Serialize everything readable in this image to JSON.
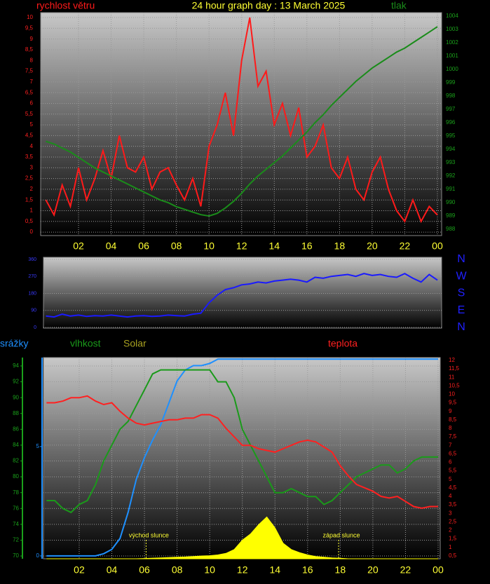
{
  "chart_data": [
    {
      "type": "line",
      "title": "24 hour graph day : 13 March 2025",
      "x": [
        0,
        0.5,
        1,
        1.5,
        2,
        2.5,
        3,
        3.5,
        4,
        4.5,
        5,
        5.5,
        6,
        6.5,
        7,
        7.5,
        8,
        8.5,
        9,
        9.5,
        10,
        10.5,
        11,
        11.5,
        12,
        12.5,
        13,
        13.5,
        14,
        14.5,
        15,
        15.5,
        16,
        16.5,
        17,
        17.5,
        18,
        18.5,
        19,
        19.5,
        20,
        20.5,
        21,
        21.5,
        22,
        22.5,
        23,
        23.5,
        24
      ],
      "xlim": [
        -0.32,
        24.26
      ],
      "xticks": [
        {
          "value": 2,
          "label": "02"
        },
        {
          "value": 4,
          "label": "04"
        },
        {
          "value": 6,
          "label": "06"
        },
        {
          "value": 8,
          "label": "08"
        },
        10,
        12,
        14,
        16,
        18,
        20,
        22,
        {
          "value": 24,
          "label": "00"
        }
      ],
      "ylim": [
        -0.16,
        10.23
      ],
      "yticks": [
        0,
        {
          "value": 0.5,
          "label": "0,5"
        },
        1,
        {
          "value": 1.5,
          "label": "1,5"
        },
        2,
        {
          "value": 2.5,
          "label": "2,5"
        },
        3,
        {
          "value": 3.5,
          "label": "3,5"
        },
        4,
        {
          "value": 4.5,
          "label": "4,5"
        },
        5,
        {
          "value": 5.5,
          "label": "5,5"
        },
        6,
        {
          "value": 6.5,
          "label": "6,5"
        },
        7,
        {
          "value": 7.5,
          "label": "7,5"
        },
        8,
        {
          "value": 8.5,
          "label": "8,5"
        },
        9,
        {
          "value": 9.5,
          "label": "9,5"
        },
        10
      ],
      "y2lim": [
        987.53,
        1004.26
      ],
      "y2ticks": [
        988,
        989,
        990,
        991,
        992,
        993,
        994,
        995,
        996,
        997,
        998,
        999,
        1000,
        1001,
        1002,
        1003,
        1004
      ],
      "grid": true,
      "series": [
        {
          "name": "rychlost větru",
          "color": "#ff1a1a",
          "values": [
            1.5,
            0.8,
            2.2,
            1.2,
            3,
            1.5,
            2.5,
            3.8,
            2.5,
            4.5,
            3,
            2.8,
            3.5,
            2,
            2.8,
            3,
            2.2,
            1.5,
            2.5,
            1.2,
            4,
            5,
            6.5,
            4.5,
            8,
            10,
            6.8,
            7.5,
            5,
            6,
            4.5,
            5.8,
            3.5,
            4,
            5,
            3,
            2.5,
            3.5,
            2,
            1.5,
            2.8,
            3.5,
            2,
            1,
            0.5,
            1.5,
            0.5,
            1.2,
            0.8
          ]
        },
        {
          "name": "tlak",
          "color": "#1a8c1a",
          "axis": "y2",
          "values": [
            994.6,
            994.4,
            994.1,
            993.8,
            993.4,
            993.0,
            992.6,
            992.3,
            992.0,
            991.7,
            991.4,
            991.1,
            990.8,
            990.5,
            990.2,
            990.0,
            989.7,
            989.5,
            989.3,
            989.1,
            989.0,
            989.2,
            989.6,
            990.1,
            990.7,
            991.4,
            992.0,
            992.5,
            993.0,
            993.5,
            994.1,
            994.7,
            995.3,
            996.0,
            996.6,
            997.3,
            997.9,
            998.5,
            999.1,
            999.6,
            1000.1,
            1000.5,
            1000.9,
            1001.3,
            1001.6,
            1002.0,
            1002.4,
            1002.8,
            1003.2
          ]
        }
      ]
    },
    {
      "type": "line",
      "x": [
        0,
        0.5,
        1,
        1.5,
        2,
        2.5,
        3,
        3.5,
        4,
        4.5,
        5,
        5.5,
        6,
        6.5,
        7,
        7.5,
        8,
        8.5,
        9,
        9.5,
        10,
        10.5,
        11,
        11.5,
        12,
        12.5,
        13,
        13.5,
        14,
        14.5,
        15,
        15.5,
        16,
        16.5,
        17,
        17.5,
        18,
        18.5,
        19,
        19.5,
        20,
        20.5,
        21,
        21.5,
        22,
        22.5,
        23,
        23.5,
        24
      ],
      "xlim": [
        -0.15,
        24.26
      ],
      "ylim": [
        -4,
        371
      ],
      "yticks": [
        0,
        90,
        180,
        270,
        360
      ],
      "y2lim": [
        -4,
        371
      ],
      "y2ticks": [
        {
          "value": 360,
          "label": "N"
        },
        {
          "value": 270,
          "label": "W"
        },
        {
          "value": 180,
          "label": "S"
        },
        {
          "value": 90,
          "label": "E"
        },
        {
          "value": 0,
          "label": "N"
        }
      ],
      "grid": true,
      "series": [
        {
          "color": "#1a1aff",
          "values": [
            60,
            55,
            70,
            60,
            65,
            58,
            62,
            60,
            65,
            60,
            55,
            60,
            62,
            58,
            60,
            65,
            62,
            60,
            70,
            75,
            130,
            170,
            200,
            210,
            225,
            230,
            240,
            235,
            245,
            250,
            255,
            250,
            240,
            265,
            260,
            270,
            275,
            280,
            270,
            285,
            275,
            280,
            270,
            265,
            285,
            260,
            240,
            280,
            250
          ]
        }
      ]
    },
    {
      "type": "line",
      "x": [
        0,
        0.5,
        1,
        1.5,
        2,
        2.5,
        3,
        3.5,
        4,
        4.5,
        5,
        5.5,
        6,
        6.5,
        7,
        7.5,
        8,
        8.5,
        9,
        9.5,
        10,
        10.5,
        11,
        11.5,
        12,
        12.5,
        13,
        13.5,
        14,
        14.5,
        15,
        15.5,
        16,
        16.5,
        17,
        17.5,
        18,
        18.5,
        19,
        19.5,
        20,
        20.5,
        21,
        21.5,
        22,
        22.5,
        23,
        23.5,
        24
      ],
      "xlim": [
        -0.19,
        24.13
      ],
      "xticks": [
        {
          "value": 2,
          "label": "02"
        },
        {
          "value": 4,
          "label": "04"
        },
        {
          "value": 6,
          "label": "06"
        },
        {
          "value": 8,
          "label": "08"
        },
        10,
        12,
        14,
        16,
        18,
        20,
        22,
        {
          "value": 24,
          "label": "00"
        }
      ],
      "ylim": [
        69.65,
        95.06
      ],
      "yticks": [
        70,
        72,
        74,
        76,
        78,
        80,
        82,
        84,
        86,
        88,
        90,
        92,
        94
      ],
      "y2lim": [
        0.33,
        12.16
      ],
      "y2ticks": [
        {
          "value": 0.5,
          "label": "0,5"
        },
        1,
        {
          "value": 1.5,
          "label": "1,5"
        },
        2,
        {
          "value": 2.5,
          "label": "2,5"
        },
        3,
        {
          "value": 3.5,
          "label": "3,5"
        },
        4,
        {
          "value": 4.5,
          "label": "4,5"
        },
        5,
        {
          "value": 5.5,
          "label": "5,5"
        },
        6,
        {
          "value": 6.5,
          "label": "6,5"
        },
        7,
        {
          "value": 7.5,
          "label": "7,5"
        },
        8,
        {
          "value": 8.5,
          "label": "8,5"
        },
        9,
        {
          "value": 9.5,
          "label": "9,5"
        },
        10,
        {
          "value": 10.5,
          "label": "10,5"
        },
        11,
        {
          "value": 11.5,
          "label": "11,5"
        },
        12
      ],
      "y3lim": [
        -0.13,
        9.07
      ],
      "y3ticks": [
        0,
        5
      ],
      "y4lim": [
        0,
        1300
      ],
      "grid": true,
      "annotations": [
        {
          "text": "východ slunce",
          "x": 6.1
        },
        {
          "text": "západ slunce",
          "x": 17.9
        }
      ],
      "series": [
        {
          "name": "srážky",
          "color": "#1e90ff",
          "axis": "y3",
          "values": [
            0,
            0,
            0,
            0,
            0,
            0,
            0,
            0.1,
            0.3,
            0.8,
            2.0,
            3.5,
            4.5,
            5.3,
            6.0,
            7.0,
            8.0,
            8.5,
            8.7,
            8.7,
            8.8,
            9.0,
            9.0,
            9.0,
            9.0,
            9.0,
            9.0,
            9.0,
            9.0,
            9.0,
            9.0,
            9.0,
            9.0,
            9.0,
            9.0,
            9.0,
            9.0,
            9.0,
            9.0,
            9.0,
            9.0,
            9.0,
            9.0,
            9.0,
            9.0,
            9.0,
            9.0,
            9.0,
            9.0
          ]
        },
        {
          "name": "vlhkost",
          "color": "#1a9a1a",
          "values": [
            77,
            77,
            76,
            75.5,
            76.5,
            77,
            79,
            82,
            84,
            86,
            87,
            89,
            91,
            93,
            93.5,
            93.5,
            93.5,
            93.5,
            93.5,
            93.5,
            93.5,
            92,
            92,
            90,
            86,
            84,
            82,
            80,
            78,
            78,
            78.5,
            78,
            77.5,
            77.5,
            76.5,
            77,
            78,
            79,
            80,
            80.5,
            81,
            81.5,
            81.5,
            80.5,
            81,
            82,
            82.5,
            82.5,
            82.5
          ]
        },
        {
          "name": "Solar",
          "color": "#ffff00",
          "axis": "y4",
          "values": [
            0,
            0,
            0,
            0,
            0,
            0,
            0,
            0,
            0,
            0,
            0,
            0,
            2,
            4,
            6,
            8,
            10,
            12,
            15,
            18,
            20,
            25,
            35,
            60,
            120,
            160,
            220,
            270,
            200,
            100,
            60,
            40,
            25,
            15,
            10,
            6,
            3,
            0,
            0,
            0,
            0,
            0,
            0,
            0,
            0,
            0,
            0,
            0,
            0
          ]
        },
        {
          "name": "teplota",
          "color": "#ff2020",
          "axis": "y2",
          "values": [
            9.5,
            9.5,
            9.6,
            9.8,
            9.8,
            9.9,
            9.6,
            9.4,
            9.5,
            9.0,
            8.6,
            8.3,
            8.2,
            8.3,
            8.4,
            8.5,
            8.5,
            8.6,
            8.6,
            8.8,
            8.8,
            8.6,
            8.0,
            7.5,
            7.0,
            7.0,
            6.8,
            6.7,
            6.6,
            6.8,
            7.0,
            7.2,
            7.3,
            7.2,
            6.9,
            6.6,
            5.8,
            5.2,
            4.7,
            4.5,
            4.3,
            4.0,
            3.9,
            4.0,
            3.7,
            3.4,
            3.3,
            3.4,
            3.4
          ]
        }
      ]
    }
  ]
}
